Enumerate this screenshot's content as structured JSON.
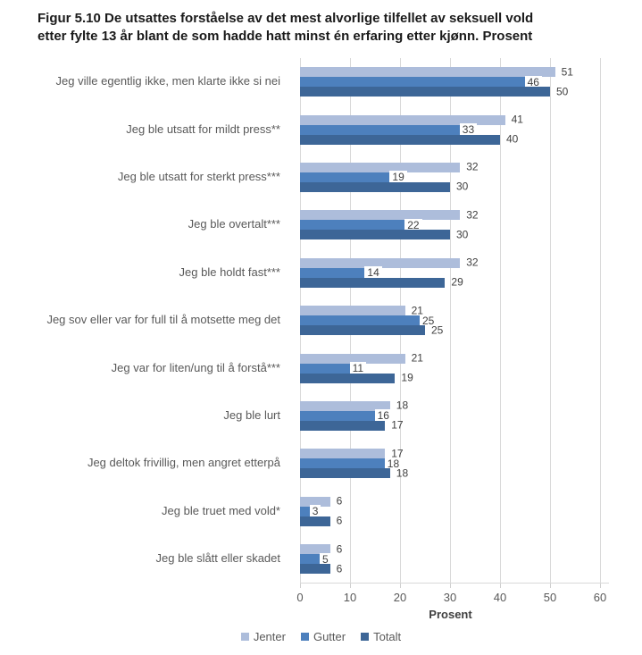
{
  "title": {
    "line1": "Figur 5.10 De utsattes forståelse av det mest alvorlige tilfellet av seksuell vold",
    "line2": "etter fylte 13 år blant de som hadde hatt minst én erfaring etter kjønn. Prosent"
  },
  "chart_data": {
    "type": "bar",
    "orientation": "horizontal",
    "title": "Figur 5.10 De utsattes forståelse av det mest alvorlige tilfellet av seksuell vold etter fylte 13 år blant de som hadde hatt minst én erfaring etter kjønn. Prosent",
    "categories": [
      "Jeg ville egentlig ikke, men klarte ikke si nei",
      "Jeg ble utsatt for mildt press**",
      "Jeg ble utsatt for sterkt press***",
      "Jeg ble overtalt***",
      "Jeg ble holdt fast***",
      "Jeg sov eller var for full til å motsette meg det",
      "Jeg var for liten/ung til å forstå***",
      "Jeg ble lurt",
      "Jeg deltok frivillig, men angret etterpå",
      "Jeg ble truet med vold*",
      "Jeg ble slått eller skadet"
    ],
    "series": [
      {
        "name": "Jenter",
        "color": "#ADBDDB",
        "values": [
          51,
          41,
          32,
          32,
          32,
          21,
          21,
          18,
          17,
          6,
          6
        ]
      },
      {
        "name": "Gutter",
        "color": "#4D80BD",
        "values": [
          46,
          33,
          19,
          22,
          14,
          25,
          11,
          16,
          18,
          3,
          5
        ]
      },
      {
        "name": "Totalt",
        "color": "#3D6697",
        "values": [
          50,
          40,
          30,
          30,
          29,
          25,
          19,
          17,
          18,
          6,
          6
        ]
      }
    ],
    "xlabel": "Prosent",
    "xlim": [
      0,
      60
    ],
    "xticks": [
      0,
      10,
      20,
      30,
      40,
      50,
      60
    ],
    "grid": true,
    "legend_position": "bottom",
    "colors": {
      "gridline": "#d9d9d9",
      "axis_text": "#595959",
      "value_label": "#404040",
      "category_label": "#595959",
      "title_text": "#1a1a1a"
    }
  }
}
